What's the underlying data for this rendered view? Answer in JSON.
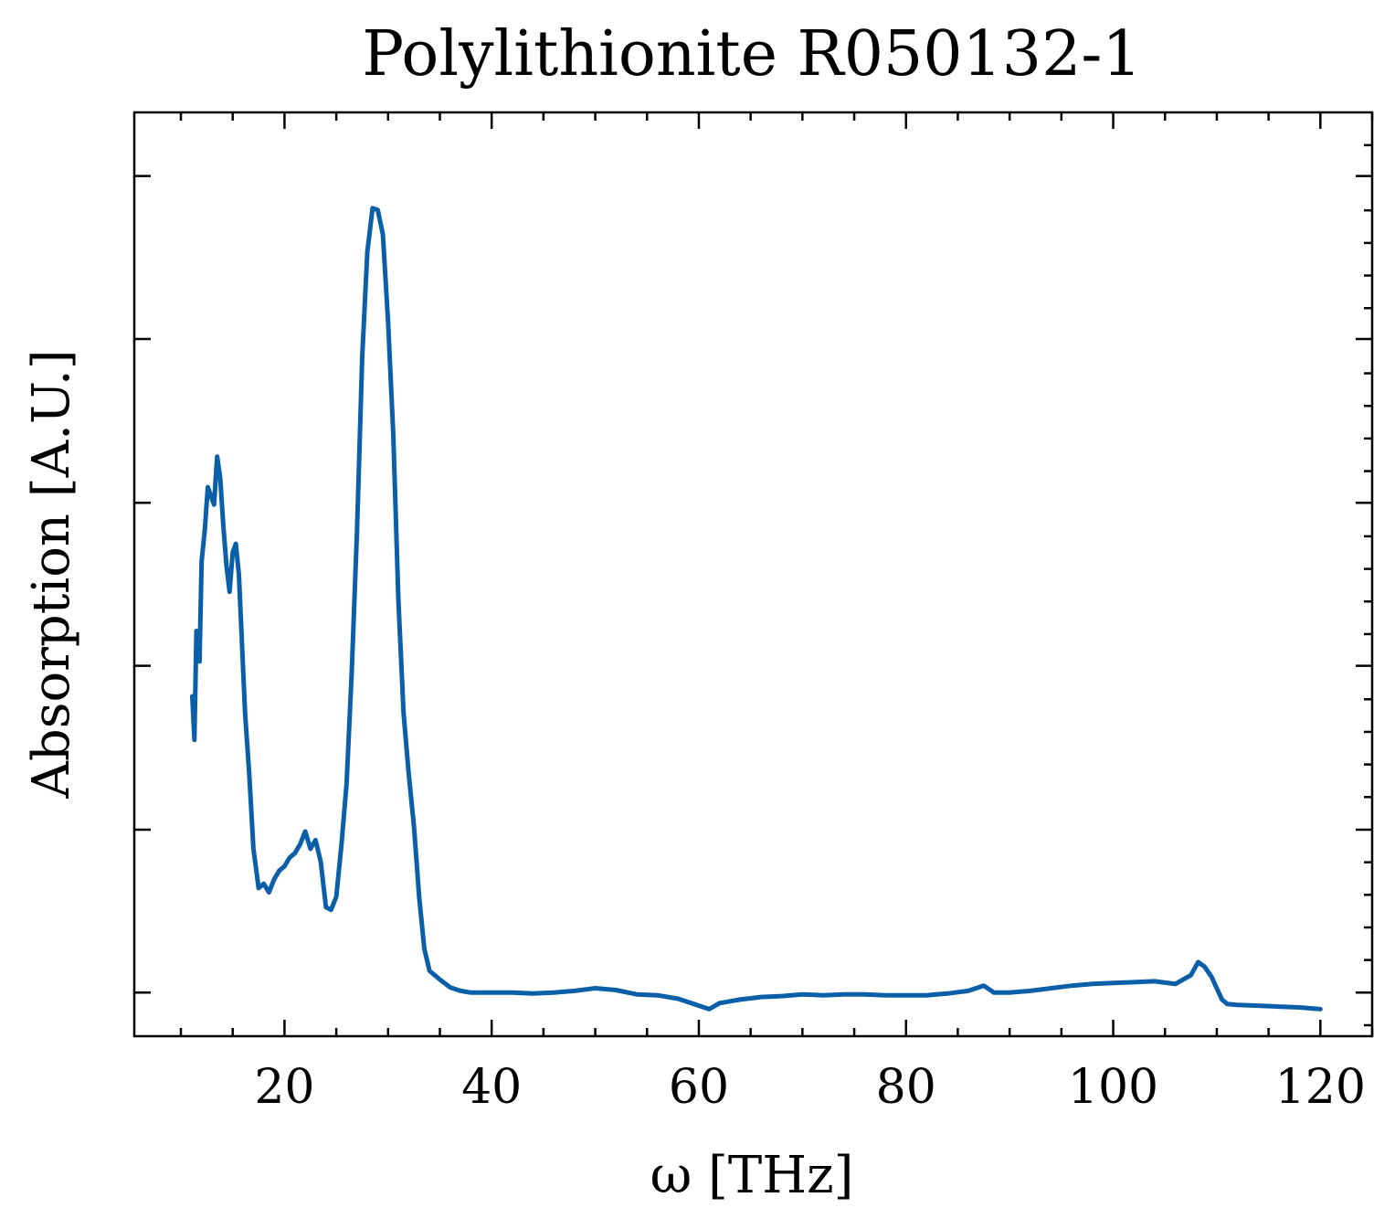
{
  "chart_data": {
    "type": "line",
    "title": "Polylithionite R050132-1",
    "xlabel": "ω [THz]",
    "ylabel": "Absorption [A.U.]",
    "xlim": [
      5.5,
      125
    ],
    "ylim": [
      0,
      1.06
    ],
    "x_ticks": [
      20,
      40,
      60,
      80,
      100,
      120
    ],
    "y_ticks_unlabeled": [
      0.05,
      0.237,
      0.425,
      0.612,
      0.8,
      0.987
    ],
    "grid": false,
    "line_color": "#0b5ea8",
    "series": [
      {
        "x": [
          11.1,
          11.3,
          11.5,
          11.8,
          12.0,
          12.3,
          12.6,
          12.9,
          13.2,
          13.5,
          13.8,
          14.1,
          14.4,
          14.7,
          15.0,
          15.3,
          15.6,
          15.9,
          16.2,
          16.6,
          17.0,
          17.5,
          18.0,
          18.5,
          19.0,
          19.5,
          20.0,
          20.5,
          21.0,
          21.5,
          22.0,
          22.5,
          23.0,
          23.5,
          24.0,
          24.5,
          25.0,
          25.5,
          26.0,
          26.5,
          27.0,
          27.5,
          28.0,
          28.5,
          29.0,
          29.5,
          30.0,
          30.5,
          31.0,
          31.5,
          32.0,
          32.5,
          33.0,
          33.5,
          34.0,
          34.5,
          35.0,
          36.0,
          37.0,
          38.0,
          40.0,
          42.0,
          44.0,
          46.0,
          48.0,
          50.0,
          52.0,
          54.0,
          56.0,
          58.0,
          60.0,
          61.0,
          62.0,
          64.0,
          66.0,
          68.0,
          70.0,
          72.0,
          74.0,
          76.0,
          78.0,
          80.0,
          82.0,
          84.0,
          86.0,
          87.5,
          88.5,
          90.0,
          92.0,
          94.0,
          96.0,
          98.0,
          100.0,
          102.0,
          104.0,
          106.0,
          107.5,
          108.2,
          108.8,
          109.5,
          110.0,
          110.5,
          111.0,
          112.0,
          114.0,
          116.0,
          118.0,
          120.0
        ],
        "y": [
          0.39,
          0.34,
          0.465,
          0.43,
          0.545,
          0.58,
          0.63,
          0.62,
          0.61,
          0.665,
          0.64,
          0.585,
          0.54,
          0.51,
          0.555,
          0.565,
          0.53,
          0.45,
          0.37,
          0.3,
          0.215,
          0.17,
          0.175,
          0.165,
          0.18,
          0.19,
          0.195,
          0.205,
          0.21,
          0.22,
          0.235,
          0.215,
          0.225,
          0.2,
          0.148,
          0.145,
          0.16,
          0.22,
          0.29,
          0.42,
          0.58,
          0.78,
          0.9,
          0.95,
          0.948,
          0.92,
          0.82,
          0.69,
          0.5,
          0.37,
          0.3,
          0.24,
          0.16,
          0.1,
          0.075,
          0.07,
          0.065,
          0.056,
          0.052,
          0.05,
          0.05,
          0.05,
          0.049,
          0.05,
          0.052,
          0.055,
          0.053,
          0.048,
          0.047,
          0.043,
          0.035,
          0.031,
          0.038,
          0.042,
          0.045,
          0.046,
          0.048,
          0.047,
          0.048,
          0.048,
          0.047,
          0.047,
          0.047,
          0.049,
          0.052,
          0.058,
          0.05,
          0.05,
          0.052,
          0.055,
          0.058,
          0.06,
          0.061,
          0.062,
          0.063,
          0.06,
          0.07,
          0.085,
          0.08,
          0.068,
          0.055,
          0.042,
          0.037,
          0.036,
          0.035,
          0.034,
          0.033,
          0.031
        ]
      }
    ]
  }
}
